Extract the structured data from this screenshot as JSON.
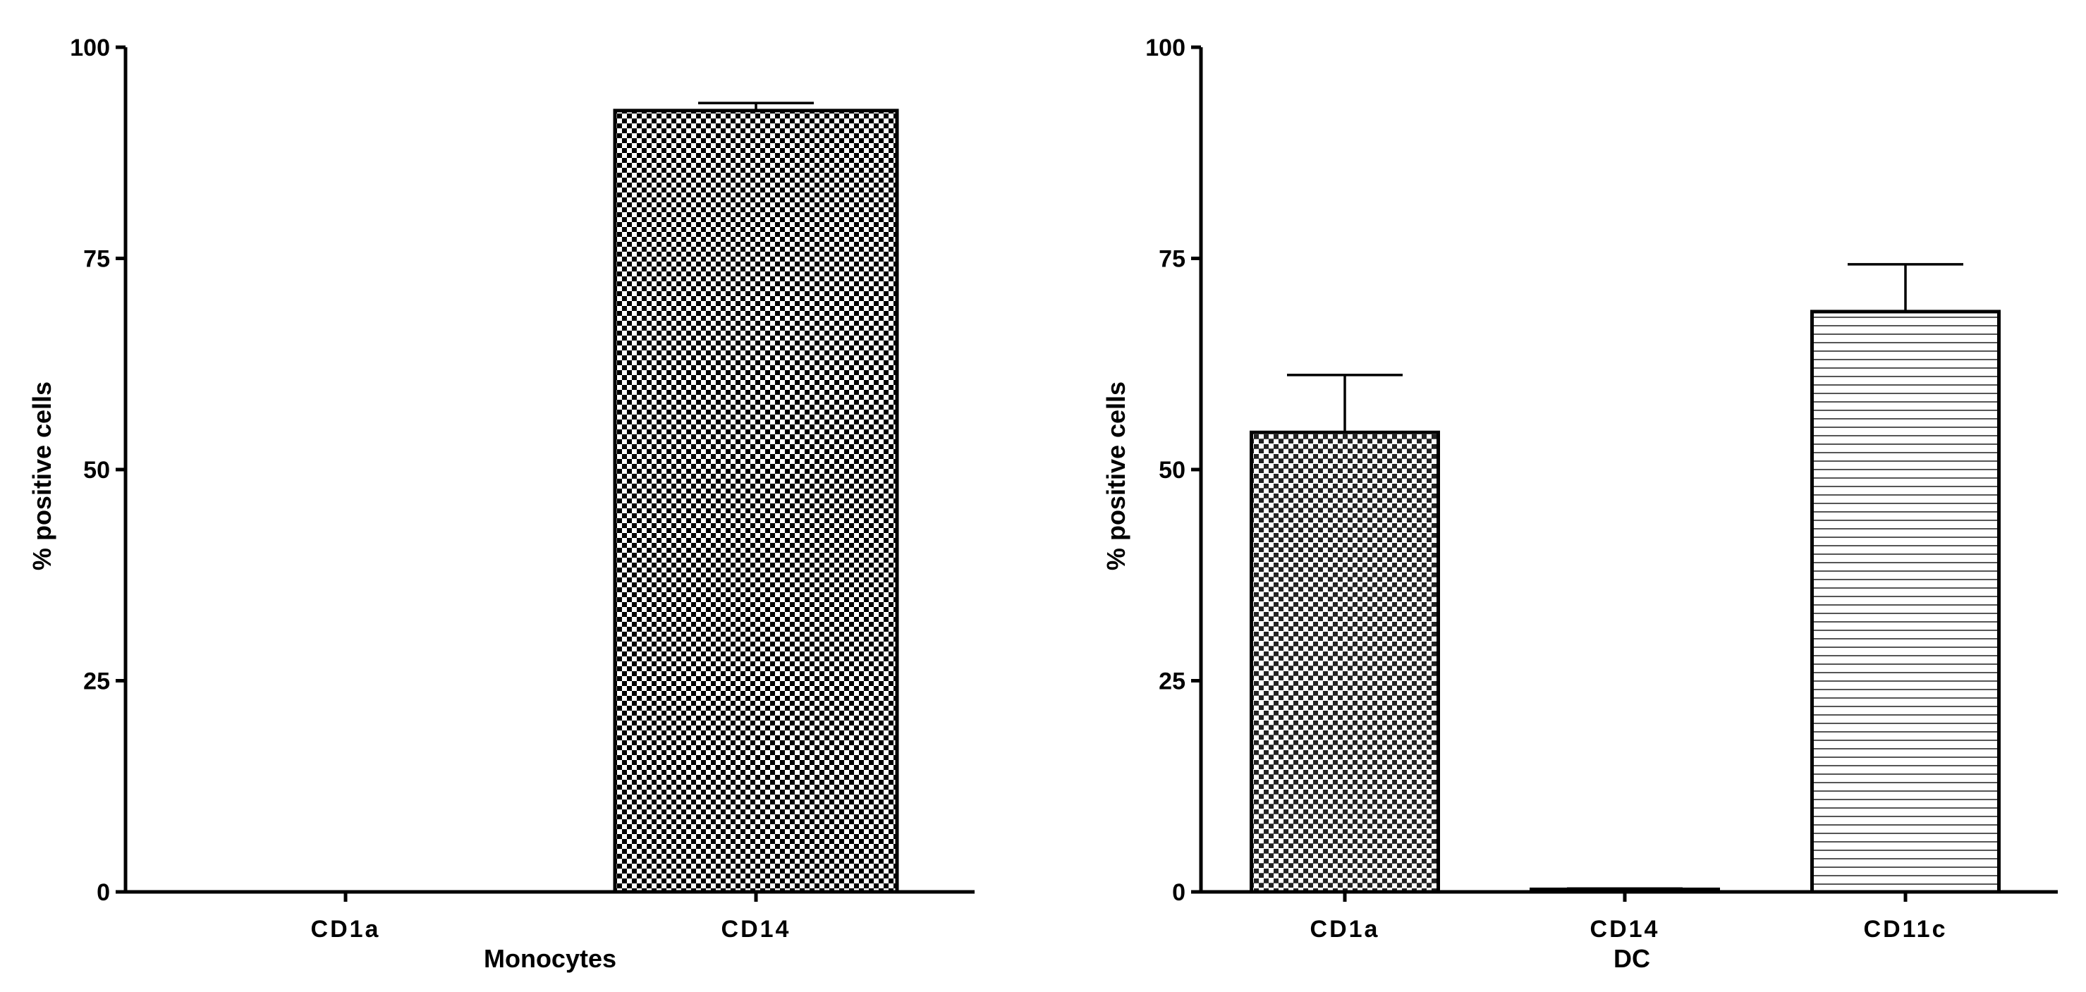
{
  "chart_data": [
    {
      "type": "bar",
      "categories": [
        "CD1a",
        "CD14"
      ],
      "values": [
        0,
        92.5
      ],
      "errors": [
        0,
        0.9
      ],
      "xlabel": "Monocytes",
      "ylabel": "% positive cells",
      "ylim": [
        0,
        100
      ],
      "yticks": [
        0,
        25,
        50,
        75,
        100
      ],
      "patterns": [
        "none",
        "checker"
      ],
      "grid": false,
      "legend": "none"
    },
    {
      "type": "bar",
      "categories": [
        "CD1a",
        "CD14",
        "CD11c"
      ],
      "values": [
        54.4,
        0.3,
        68.7
      ],
      "errors": [
        6.8,
        0.1,
        5.6
      ],
      "xlabel": "DC",
      "ylabel": "% positive cells",
      "ylim": [
        0,
        100
      ],
      "yticks": [
        0,
        25,
        50,
        75,
        100
      ],
      "patterns": [
        "checker-striped",
        "checker",
        "horizontal-lines"
      ],
      "grid": false,
      "legend": "none"
    }
  ]
}
